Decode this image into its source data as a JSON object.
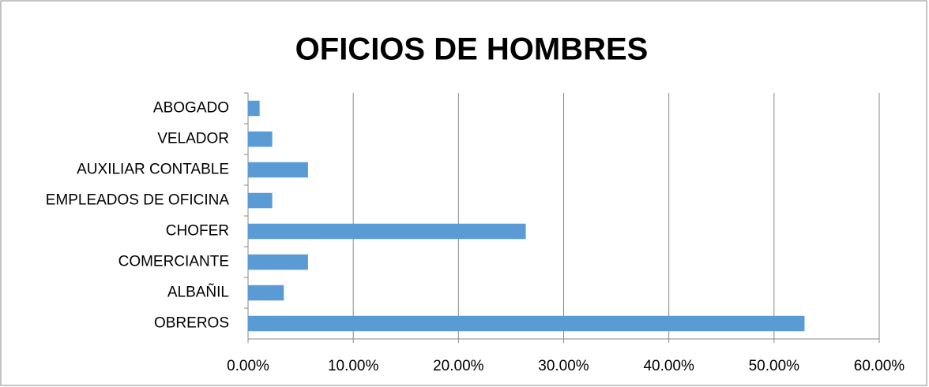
{
  "chart_data": {
    "type": "barh",
    "title": "OFICIOS DE HOMBRES",
    "categories": [
      "ABOGADO",
      "VELADOR",
      "AUXILIAR CONTABLE",
      "EMPLEADOS DE OFICINA",
      "CHOFER",
      "COMERCIANTE",
      "ALBAÑIL",
      "OBREROS"
    ],
    "values": [
      1.1,
      2.3,
      5.7,
      2.3,
      26.4,
      5.7,
      3.4,
      52.9
    ],
    "color": "#5b9bd5",
    "xlim": [
      0,
      60
    ],
    "xticks": [
      {
        "value": 0,
        "label": "0.00%"
      },
      {
        "value": 10,
        "label": "10.00%"
      },
      {
        "value": 20,
        "label": "20.00%"
      },
      {
        "value": 30,
        "label": "30.00%"
      },
      {
        "value": 40,
        "label": "40.00%"
      },
      {
        "value": 50,
        "label": "50.00%"
      },
      {
        "value": 60,
        "label": "60.00%"
      }
    ],
    "grid": true
  }
}
